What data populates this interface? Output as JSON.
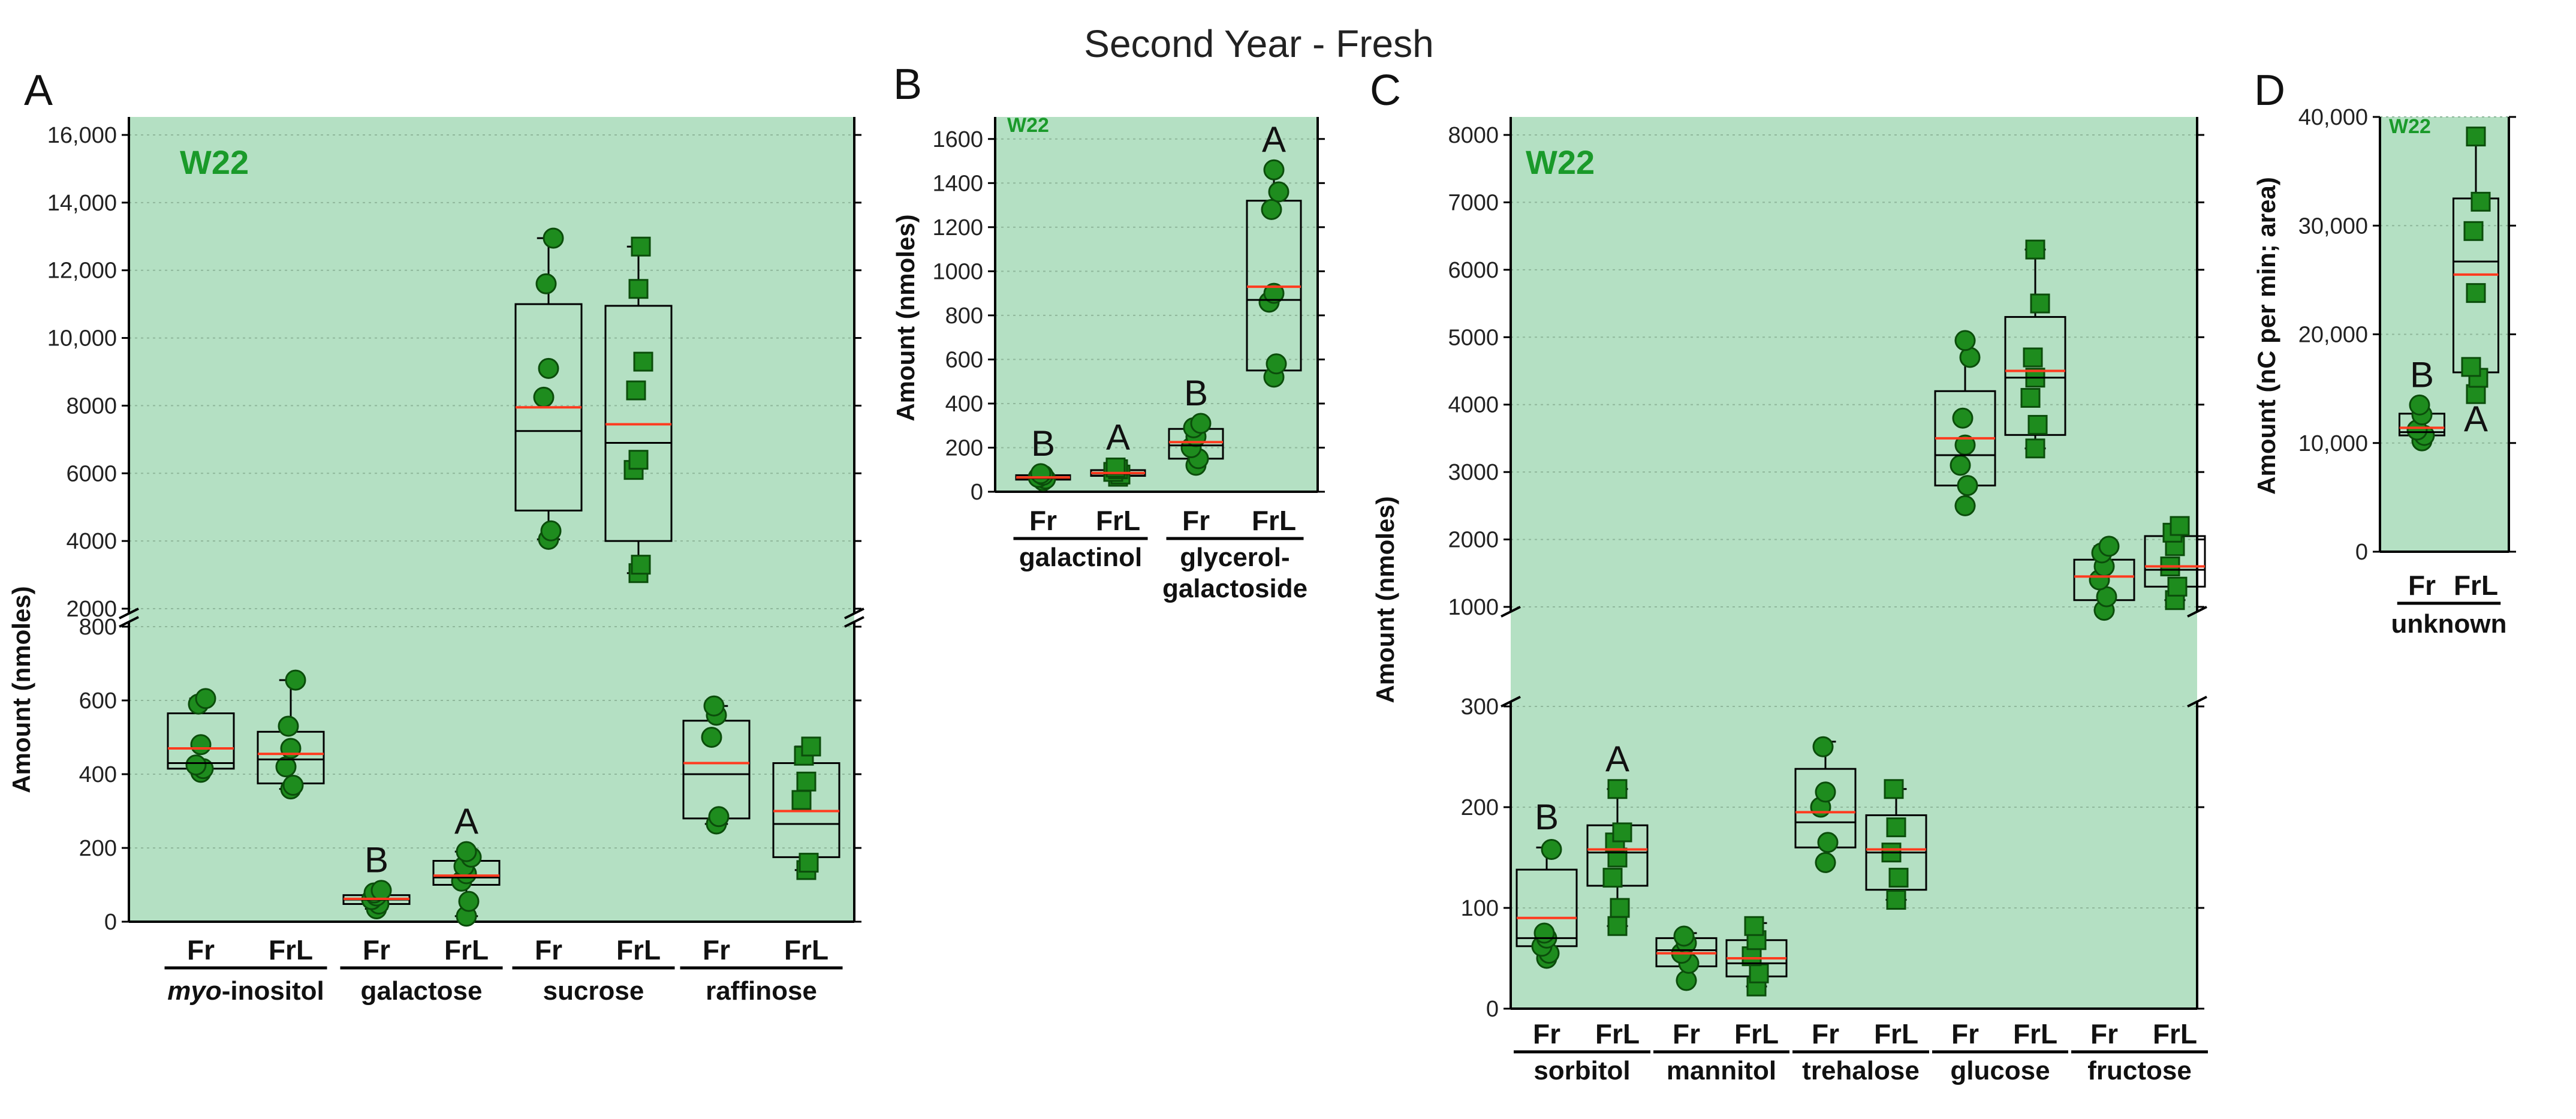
{
  "title": "Second Year - Fresh",
  "colors": {
    "panel_bg": "#b4e0c3",
    "marker": "#1e8c1e",
    "marker_edge": "#0b4d0b",
    "median": "#000000",
    "mean": "#ff3b1f",
    "axis": "#000000"
  },
  "chart_data": [
    {
      "panel": "A",
      "type": "box",
      "genotype": "W22",
      "ylabel": "Amount (nmoles)",
      "broken_axis": true,
      "lower_range": [
        0,
        800
      ],
      "lower_ticks": [
        "0",
        "200",
        "400",
        "600",
        "800"
      ],
      "upper_range": [
        2000,
        16000
      ],
      "upper_ticks": [
        "2000",
        "4000",
        "6000",
        "8000",
        "10,000",
        "12,000",
        "14,000",
        "16,000"
      ],
      "groups": [
        "myo-inositol",
        "galactose",
        "sucrose",
        "raffinose"
      ],
      "categories": [
        "Fr",
        "FrL",
        "Fr",
        "FrL",
        "Fr",
        "FrL",
        "Fr",
        "FrL"
      ],
      "boxes": [
        {
          "group": "myo-inositol",
          "cat": "Fr",
          "whisker_low": 405,
          "q1": 415,
          "median": 430,
          "mean": 470,
          "q3": 565,
          "whisker_high": 605,
          "marker": "circle",
          "points": [
            405,
            415,
            425,
            480,
            590,
            605
          ],
          "sig": ""
        },
        {
          "group": "myo-inositol",
          "cat": "FrL",
          "whisker_low": 360,
          "q1": 375,
          "median": 440,
          "mean": 455,
          "q3": 515,
          "whisker_high": 655,
          "marker": "circle",
          "points": [
            360,
            370,
            420,
            470,
            530,
            655
          ],
          "sig": ""
        },
        {
          "group": "galactose",
          "cat": "Fr",
          "whisker_low": 35,
          "q1": 48,
          "median": 60,
          "mean": 62,
          "q3": 72,
          "whisker_high": 85,
          "marker": "circle",
          "points": [
            35,
            48,
            60,
            70,
            78,
            85
          ],
          "sig": "B"
        },
        {
          "group": "galactose",
          "cat": "FrL",
          "whisker_low": 15,
          "q1": 100,
          "median": 120,
          "mean": 125,
          "q3": 165,
          "whisker_high": 190,
          "marker": "circle",
          "points": [
            15,
            55,
            110,
            130,
            150,
            175,
            190
          ],
          "sig": "A"
        },
        {
          "group": "sucrose",
          "cat": "Fr",
          "whisker_low": 4050,
          "q1": 4900,
          "median": 7250,
          "mean": 7950,
          "q3": 11000,
          "whisker_high": 12950,
          "marker": "circle",
          "points": [
            4050,
            4300,
            8250,
            9100,
            11600,
            12950
          ],
          "sig": ""
        },
        {
          "group": "sucrose",
          "cat": "FrL",
          "whisker_low": 3050,
          "q1": 4000,
          "median": 6900,
          "mean": 7450,
          "q3": 10950,
          "whisker_high": 12700,
          "marker": "square",
          "points": [
            3050,
            3300,
            6100,
            6400,
            8450,
            9300,
            11450,
            12700
          ],
          "sig": ""
        },
        {
          "group": "raffinose",
          "cat": "Fr",
          "whisker_low": 265,
          "q1": 280,
          "median": 400,
          "mean": 430,
          "q3": 545,
          "whisker_high": 585,
          "marker": "circle",
          "points": [
            265,
            285,
            500,
            560,
            585
          ],
          "sig": ""
        },
        {
          "group": "raffinose",
          "cat": "FrL",
          "whisker_low": 140,
          "q1": 175,
          "median": 265,
          "mean": 300,
          "q3": 430,
          "whisker_high": 475,
          "marker": "square",
          "points": [
            140,
            160,
            330,
            380,
            450,
            475
          ],
          "sig": ""
        }
      ]
    },
    {
      "panel": "B",
      "type": "box",
      "genotype": "W22",
      "ylabel": "Amount (nmoles)",
      "broken_axis": false,
      "ylim": [
        0,
        1700
      ],
      "ticks": [
        "0",
        "200",
        "400",
        "600",
        "800",
        "1000",
        "1200",
        "1400",
        "1600"
      ],
      "groups": [
        "galactinol",
        "glycerol-galactoside"
      ],
      "categories": [
        "Fr",
        "FrL",
        "Fr",
        "FrL"
      ],
      "boxes": [
        {
          "group": "galactinol",
          "cat": "Fr",
          "whisker_low": 50,
          "q1": 55,
          "median": 62,
          "mean": 65,
          "q3": 75,
          "whisker_high": 82,
          "marker": "circle",
          "points": [
            50,
            58,
            65,
            75,
            82
          ],
          "sig": "B"
        },
        {
          "group": "galactinol",
          "cat": "FrL",
          "whisker_low": 68,
          "q1": 72,
          "median": 82,
          "mean": 85,
          "q3": 98,
          "whisker_high": 110,
          "marker": "square",
          "points": [
            68,
            78,
            90,
            102,
            110
          ],
          "sig": "A"
        },
        {
          "group": "glycerol-galactoside",
          "cat": "Fr",
          "whisker_low": 120,
          "q1": 150,
          "median": 210,
          "mean": 225,
          "q3": 285,
          "whisker_high": 310,
          "marker": "circle",
          "points": [
            120,
            150,
            200,
            250,
            290,
            310
          ],
          "sig": "B"
        },
        {
          "group": "glycerol-galactoside",
          "cat": "FrL",
          "whisker_low": 520,
          "q1": 550,
          "median": 870,
          "mean": 930,
          "q3": 1320,
          "whisker_high": 1460,
          "marker": "circle",
          "points": [
            520,
            580,
            860,
            900,
            1280,
            1360,
            1460
          ],
          "sig": "A"
        }
      ]
    },
    {
      "panel": "C",
      "type": "box",
      "genotype": "W22",
      "ylabel": "Amount (nmoles)",
      "broken_axis": true,
      "lower_range": [
        0,
        300
      ],
      "lower_ticks": [
        "0",
        "100",
        "200",
        "300"
      ],
      "upper_range": [
        1000,
        8000
      ],
      "upper_ticks": [
        "1000",
        "2000",
        "3000",
        "4000",
        "5000",
        "6000",
        "7000",
        "8000"
      ],
      "groups": [
        "sorbitol",
        "mannitol",
        "trehalose",
        "glucose",
        "fructose"
      ],
      "categories": [
        "Fr",
        "FrL",
        "Fr",
        "FrL",
        "Fr",
        "FrL",
        "Fr",
        "FrL",
        "Fr",
        "FrL"
      ],
      "boxes": [
        {
          "group": "sorbitol",
          "cat": "Fr",
          "whisker_low": 50,
          "q1": 62,
          "median": 70,
          "mean": 90,
          "q3": 138,
          "whisker_high": 160,
          "marker": "circle",
          "points": [
            50,
            55,
            62,
            70,
            75,
            158
          ],
          "sig": "B"
        },
        {
          "group": "sorbitol",
          "cat": "FrL",
          "whisker_low": 82,
          "q1": 122,
          "median": 155,
          "mean": 158,
          "q3": 182,
          "whisker_high": 218,
          "marker": "square",
          "points": [
            82,
            100,
            130,
            150,
            165,
            175,
            218
          ],
          "sig": "A"
        },
        {
          "group": "mannitol",
          "cat": "Fr",
          "whisker_low": 28,
          "q1": 42,
          "median": 58,
          "mean": 55,
          "q3": 70,
          "whisker_high": 75,
          "marker": "circle",
          "points": [
            28,
            45,
            55,
            65,
            72
          ],
          "sig": ""
        },
        {
          "group": "mannitol",
          "cat": "FrL",
          "whisker_low": 22,
          "q1": 32,
          "median": 45,
          "mean": 50,
          "q3": 68,
          "whisker_high": 85,
          "marker": "square",
          "points": [
            22,
            35,
            52,
            68,
            82
          ],
          "sig": ""
        },
        {
          "group": "trehalose",
          "cat": "Fr",
          "whisker_low": 145,
          "q1": 160,
          "median": 185,
          "mean": 195,
          "q3": 238,
          "whisker_high": 265,
          "marker": "circle",
          "points": [
            145,
            165,
            200,
            215,
            260
          ],
          "sig": ""
        },
        {
          "group": "trehalose",
          "cat": "FrL",
          "whisker_low": 108,
          "q1": 118,
          "median": 155,
          "mean": 158,
          "q3": 192,
          "whisker_high": 218,
          "marker": "square",
          "points": [
            108,
            130,
            155,
            180,
            218
          ],
          "sig": ""
        },
        {
          "group": "glucose",
          "cat": "Fr",
          "whisker_low": 2500,
          "q1": 2800,
          "median": 3250,
          "mean": 3500,
          "q3": 4200,
          "whisker_high": 4950,
          "marker": "circle",
          "points": [
            2500,
            2800,
            3100,
            3400,
            3800,
            4700,
            4950
          ],
          "sig": ""
        },
        {
          "group": "glucose",
          "cat": "FrL",
          "whisker_low": 3350,
          "q1": 3550,
          "median": 4400,
          "mean": 4500,
          "q3": 5300,
          "whisker_high": 6300,
          "marker": "square",
          "points": [
            3350,
            3700,
            4100,
            4400,
            4700,
            5500,
            6300
          ],
          "sig": ""
        },
        {
          "group": "fructose",
          "cat": "Fr",
          "whisker_low": 950,
          "q1": 1100,
          "median": 1450,
          "mean": 1450,
          "q3": 1700,
          "whisker_high": 1900,
          "marker": "circle",
          "points": [
            950,
            1150,
            1400,
            1600,
            1800,
            1900
          ],
          "sig": ""
        },
        {
          "group": "fructose",
          "cat": "FrL",
          "whisker_low": 1100,
          "q1": 1300,
          "median": 1550,
          "mean": 1600,
          "q3": 2050,
          "whisker_high": 2200,
          "marker": "square",
          "points": [
            1100,
            1300,
            1600,
            1900,
            2100,
            2200
          ],
          "sig": ""
        }
      ]
    },
    {
      "panel": "D",
      "type": "box",
      "genotype": "W22",
      "ylabel": "Amount (nC per min; area)",
      "broken_axis": false,
      "ylim": [
        0,
        40000
      ],
      "ticks": [
        "0",
        "10,000",
        "20,000",
        "30,000",
        "40,000"
      ],
      "groups": [
        "unknown"
      ],
      "categories": [
        "Fr",
        "FrL"
      ],
      "boxes": [
        {
          "group": "unknown",
          "cat": "Fr",
          "whisker_low": 10200,
          "q1": 10700,
          "median": 11000,
          "mean": 11400,
          "q3": 12700,
          "whisker_high": 13500,
          "marker": "circle",
          "points": [
            10200,
            10700,
            11200,
            12600,
            13500
          ],
          "sig": "B"
        },
        {
          "group": "unknown",
          "cat": "FrL",
          "whisker_low": 14500,
          "q1": 16500,
          "median": 26700,
          "mean": 25500,
          "q3": 32500,
          "whisker_high": 38200,
          "marker": "square",
          "points": [
            14500,
            16000,
            17000,
            23800,
            29500,
            32200,
            38200
          ],
          "sig": "A"
        }
      ]
    }
  ]
}
